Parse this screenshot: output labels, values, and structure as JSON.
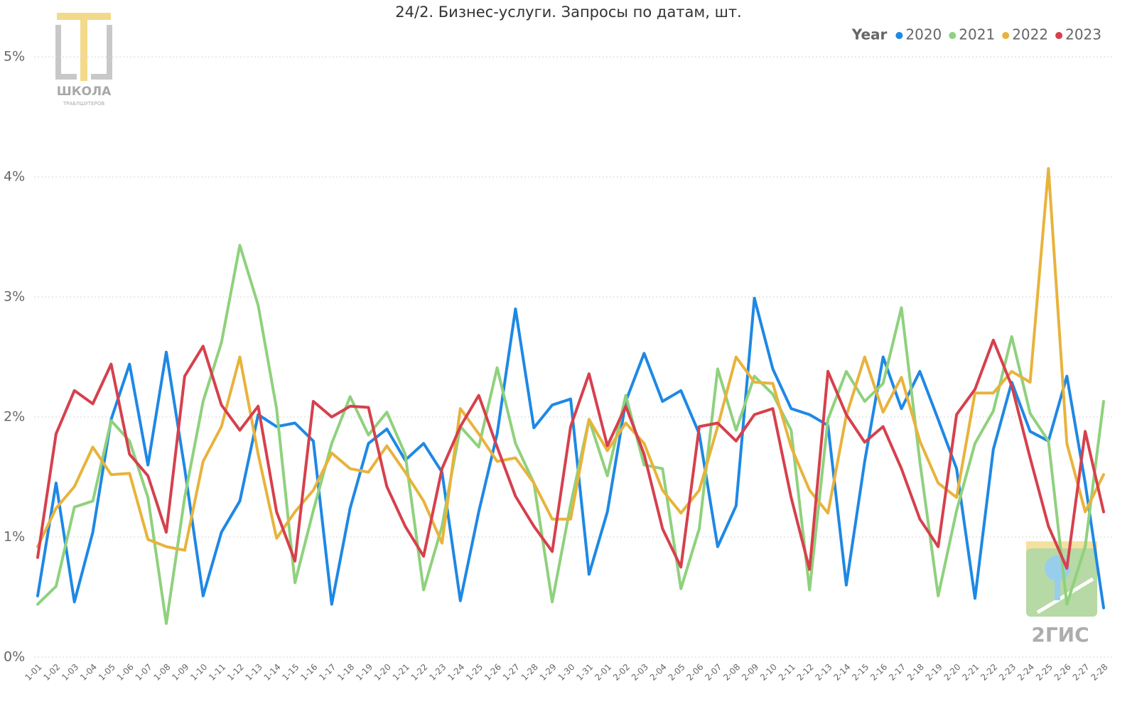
{
  "chart_data": {
    "type": "line",
    "title": "24/2. Бизнес-услуги. Запросы по датам, шт.",
    "legend_title": "Year",
    "legend": "top-right",
    "grid": true,
    "watermarks": [
      "ШКОЛА",
      "ТРАБЛШУТЕРОВ",
      "2ГИС"
    ],
    "ylim": [
      0,
      5.3
    ],
    "yticks": [
      {
        "value": 0,
        "label": "0%"
      },
      {
        "value": 1,
        "label": "1%"
      },
      {
        "value": 2,
        "label": "2%"
      },
      {
        "value": 3,
        "label": "3%"
      },
      {
        "value": 4,
        "label": "4%"
      },
      {
        "value": 5,
        "label": "5%"
      }
    ],
    "categories": [
      "1-01",
      "1-02",
      "1-03",
      "1-04",
      "1-05",
      "1-06",
      "1-07",
      "1-08",
      "1-09",
      "1-10",
      "1-11",
      "1-12",
      "1-13",
      "1-14",
      "1-15",
      "1-16",
      "1-17",
      "1-18",
      "1-19",
      "1-20",
      "1-21",
      "1-22",
      "1-23",
      "1-24",
      "1-25",
      "1-26",
      "1-27",
      "1-28",
      "1-29",
      "1-30",
      "1-31",
      "2-01",
      "2-02",
      "2-03",
      "2-04",
      "2-05",
      "2-06",
      "2-07",
      "2-08",
      "2-09",
      "2-10",
      "2-11",
      "2-12",
      "2-13",
      "2-14",
      "2-15",
      "2-16",
      "2-17",
      "2-18",
      "2-19",
      "2-20",
      "2-21",
      "2-22",
      "2-23",
      "2-24",
      "2-25",
      "2-26",
      "2-27",
      "2-28"
    ],
    "series": [
      {
        "name": "2020",
        "color": "#1e88e5",
        "values": [
          0.51,
          1.45,
          0.46,
          1.04,
          1.98,
          2.44,
          1.6,
          2.54,
          1.57,
          0.51,
          1.04,
          1.3,
          2.02,
          1.92,
          1.95,
          1.8,
          0.44,
          1.24,
          1.78,
          1.9,
          1.64,
          1.78,
          1.54,
          0.47,
          1.21,
          1.86,
          2.9,
          1.91,
          2.1,
          2.15,
          0.69,
          1.21,
          2.13,
          2.53,
          2.13,
          2.22,
          1.86,
          0.92,
          1.26,
          2.99,
          2.4,
          2.07,
          2.02,
          1.93,
          0.6,
          1.63,
          2.5,
          2.07,
          2.38,
          1.98,
          1.57,
          0.49,
          1.73,
          2.29,
          1.88,
          1.8,
          2.34,
          1.45,
          0.41
        ]
      },
      {
        "name": "2021",
        "color": "#8fd17d",
        "values": [
          0.44,
          0.59,
          1.25,
          1.3,
          1.97,
          1.8,
          1.33,
          0.28,
          1.33,
          2.13,
          2.62,
          3.43,
          2.93,
          2.07,
          0.62,
          1.22,
          1.78,
          2.17,
          1.85,
          2.04,
          1.69,
          0.56,
          1.09,
          1.92,
          1.75,
          2.41,
          1.78,
          1.45,
          0.46,
          1.27,
          1.98,
          1.51,
          2.18,
          1.6,
          1.57,
          0.57,
          1.07,
          2.4,
          1.89,
          2.34,
          2.19,
          1.89,
          0.56,
          1.98,
          2.38,
          2.13,
          2.28,
          2.91,
          1.63,
          0.51,
          1.22,
          1.78,
          2.05,
          2.67,
          2.03,
          1.8,
          0.44,
          0.92,
          2.13
        ]
      },
      {
        "name": "2022",
        "color": "#e8b33c",
        "values": [
          0.92,
          1.24,
          1.42,
          1.75,
          1.52,
          1.53,
          0.98,
          0.92,
          0.89,
          1.63,
          1.92,
          2.5,
          1.69,
          0.99,
          1.21,
          1.39,
          1.7,
          1.57,
          1.54,
          1.76,
          1.54,
          1.3,
          0.95,
          2.07,
          1.86,
          1.63,
          1.66,
          1.45,
          1.15,
          1.15,
          1.98,
          1.72,
          1.95,
          1.78,
          1.39,
          1.2,
          1.39,
          1.92,
          2.5,
          2.29,
          2.28,
          1.75,
          1.39,
          1.2,
          2.01,
          2.5,
          2.04,
          2.33,
          1.8,
          1.45,
          1.33,
          2.2,
          2.2,
          2.38,
          2.29,
          4.07,
          1.78,
          1.21,
          1.52
        ]
      },
      {
        "name": "2023",
        "color": "#d6404d",
        "values": [
          0.83,
          1.86,
          2.22,
          2.11,
          2.44,
          1.69,
          1.51,
          1.04,
          2.34,
          2.59,
          2.1,
          1.89,
          2.09,
          1.21,
          0.8,
          2.13,
          2.0,
          2.09,
          2.08,
          1.42,
          1.09,
          0.84,
          1.57,
          1.92,
          2.18,
          1.75,
          1.34,
          1.09,
          0.88,
          1.92,
          2.36,
          1.76,
          2.09,
          1.69,
          1.07,
          0.75,
          1.92,
          1.95,
          1.8,
          2.02,
          2.07,
          1.33,
          0.73,
          2.38,
          2.02,
          1.79,
          1.92,
          1.57,
          1.15,
          0.92,
          2.02,
          2.23,
          2.64,
          2.26,
          1.66,
          1.09,
          0.74,
          1.88,
          1.21
        ]
      }
    ]
  }
}
